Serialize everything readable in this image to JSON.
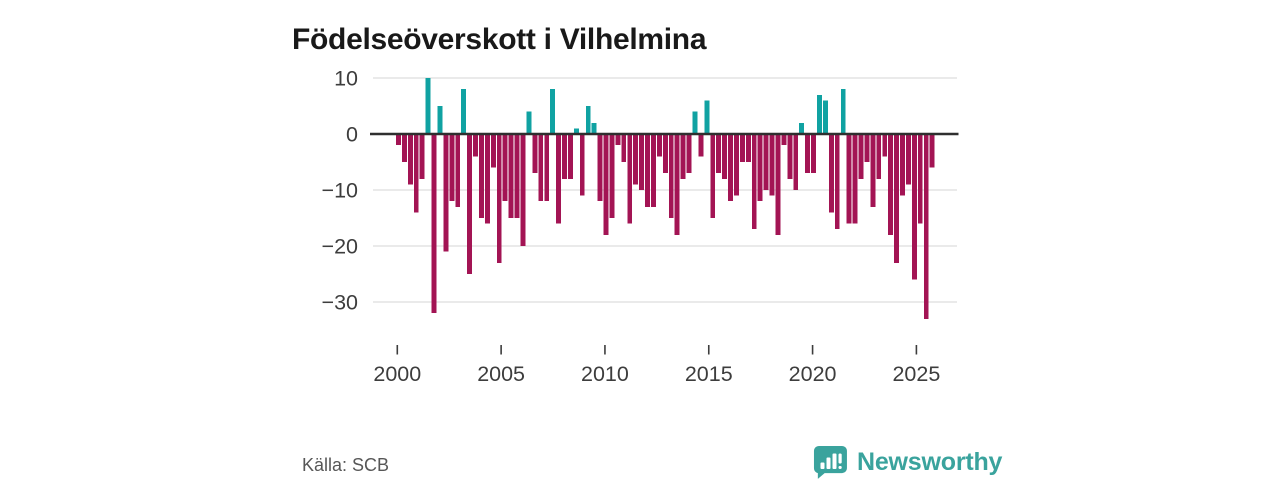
{
  "title": "Födelseöverskott i Vilhelmina",
  "source": "Källa: SCB",
  "branding": {
    "name": "Newsworthy"
  },
  "colors": {
    "positive": "#10a2a2",
    "negative": "#a31454",
    "axis": "#2f2f2f",
    "grid": "#dedede",
    "tick_text": "#3d3d3d",
    "title_text": "#191919",
    "source_text": "#575757",
    "brand_teal": "#3aa39d"
  },
  "chart_data": {
    "type": "bar",
    "title": "Födelseöverskott i Vilhelmina",
    "xlabel": "",
    "ylabel": "",
    "x_ticks": [
      2000,
      2005,
      2010,
      2015,
      2020,
      2025
    ],
    "x_tick_labels": [
      "2000",
      "2005",
      "2010",
      "2015",
      "2020",
      "2025"
    ],
    "y_ticks": [
      10,
      0,
      -10,
      -20,
      -30
    ],
    "y_tick_labels": [
      "10",
      "0",
      "−10",
      "−20",
      "−30"
    ],
    "ylim": [
      -35,
      12
    ],
    "grid": "horizontal",
    "legend": "none",
    "start_year": 2000,
    "end_year": 2025,
    "estimated_from_pixels": true,
    "values": [
      -2,
      -5,
      -9,
      -14,
      -8,
      10,
      -32,
      5,
      -21,
      -12,
      -13,
      8,
      -25,
      -4,
      -15,
      -16,
      -6,
      -23,
      -12,
      -15,
      -15,
      -20,
      4,
      -7,
      -12,
      -12,
      8,
      -16,
      -8,
      -8,
      1,
      -11,
      5,
      2,
      -12,
      -18,
      -15,
      -2,
      -5,
      -16,
      -9,
      -10,
      -13,
      -13,
      -4,
      -7,
      -15,
      -18,
      -8,
      -7,
      4,
      -4,
      6,
      -15,
      -7,
      -8,
      -12,
      -11,
      -5,
      -5,
      -17,
      -12,
      -10,
      -11,
      -18,
      -2,
      -8,
      -10,
      2,
      -7,
      -7,
      7,
      6,
      -14,
      -17,
      8,
      -16,
      -16,
      -8,
      -5,
      -13,
      -8,
      -4,
      -18,
      -23,
      -11,
      -9,
      -26,
      -16,
      -33,
      -6
    ]
  }
}
